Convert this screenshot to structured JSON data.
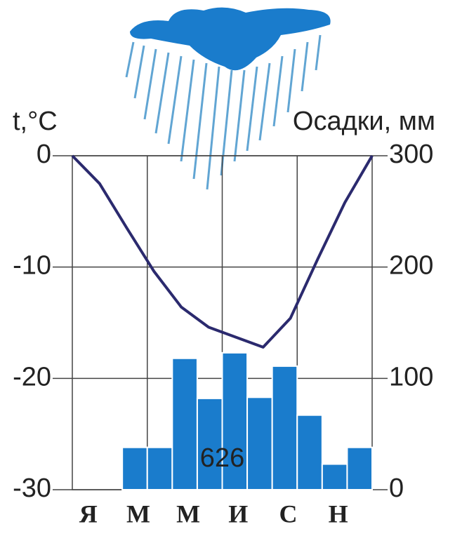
{
  "chart_data": {
    "type": "combo",
    "y_label": "t,°C",
    "y2_label": "Осадки, мм",
    "annotation": "626",
    "categories": [
      "Я",
      null,
      "М",
      null,
      "М",
      null,
      "И",
      null,
      "С",
      null,
      "Н",
      null
    ],
    "ylim": [
      -30,
      0
    ],
    "yticks": [
      0,
      -10,
      -20,
      -30
    ],
    "y2lim": [
      0,
      300
    ],
    "y2ticks": [
      300,
      200,
      100,
      0
    ],
    "grid": true,
    "series": [
      {
        "type": "bar",
        "axis": "y2",
        "color": "#1a7ccc",
        "values": [
          0,
          0,
          38,
          38,
          118,
          82,
          123,
          83,
          111,
          67,
          23,
          38
        ]
      },
      {
        "type": "line",
        "axis": "y",
        "color": "#2b2a6e",
        "values": [
          0,
          -2.5,
          -6.5,
          -10.4,
          -13.6,
          -15.4,
          -16.3,
          -17.2,
          -14.6,
          -9.3,
          -4.2,
          0
        ]
      }
    ]
  }
}
